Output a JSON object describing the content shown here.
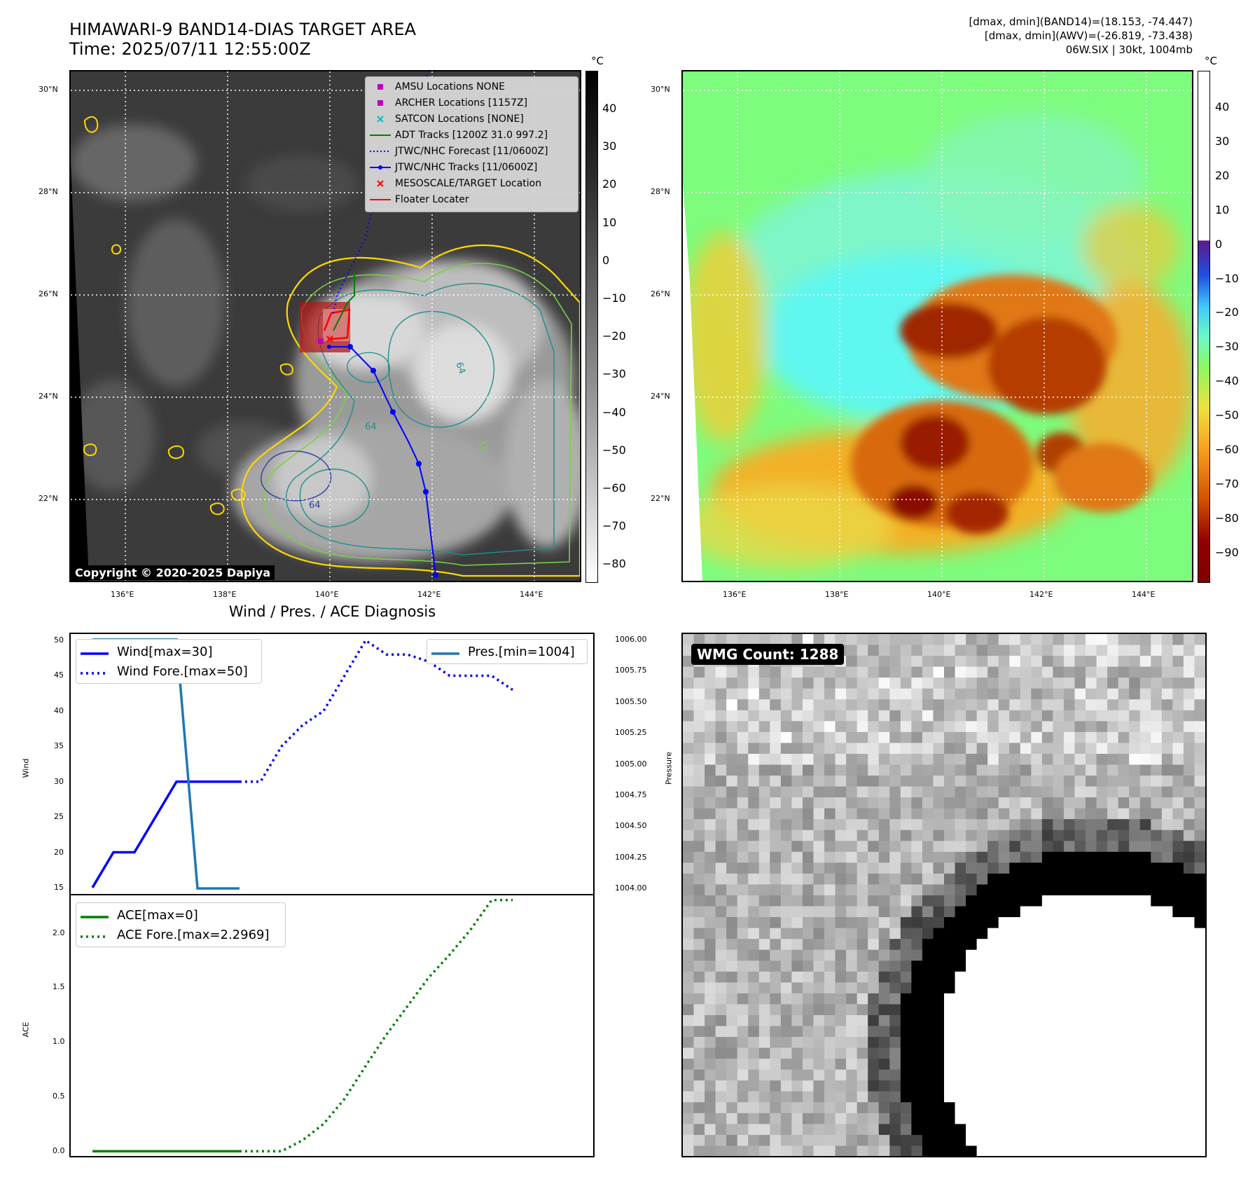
{
  "header": {
    "title_line1": "HIMAWARI-9 BAND14-DIAS TARGET AREA",
    "title_line2": "Time: 2025/07/11 12:55:00Z",
    "info_line1": "[dmax, dmin](BAND14)=(18.153, -74.447)",
    "info_line2": "[dmax, dmin](AWV)=(-26.819, -73.438)",
    "info_line3": "06W.SIX | 30kt, 1004mb"
  },
  "maps": {
    "lat_labels": [
      "30°N",
      "28°N",
      "26°N",
      "24°N",
      "22°N"
    ],
    "lon_labels": [
      "136°E",
      "138°E",
      "140°E",
      "142°E",
      "144°E"
    ],
    "colorbar_unit": "°C",
    "band14_ticks": [
      "40",
      "30",
      "20",
      "10",
      "0",
      "−10",
      "−20",
      "−30",
      "−40",
      "−50",
      "−60",
      "−70",
      "−80"
    ],
    "awv_ticks": [
      "40",
      "30",
      "20",
      "10",
      "0",
      "−10",
      "−20",
      "−30",
      "−40",
      "−50",
      "−60",
      "−70",
      "−80",
      "−90"
    ],
    "copyright": "Copyright © 2020-2025 Dapiya",
    "legend": [
      {
        "label": "AMSU Locations NONE",
        "symbol": "square",
        "color": "#bf00bf"
      },
      {
        "label": "ARCHER Locations [1157Z]",
        "symbol": "square",
        "color": "#bf00bf"
      },
      {
        "label": "SATCON Locations [NONE]",
        "symbol": "x",
        "color": "#00bfbf"
      },
      {
        "label": "ADT Tracks [1200Z 31.0 997.2]",
        "symbol": "line",
        "color": "#008000"
      },
      {
        "label": "JTWC/NHC Forecast [11/0600Z]",
        "symbol": "dotted",
        "color": "#0000ff"
      },
      {
        "label": "JTWC/NHC Tracks [11/0600Z]",
        "symbol": "line-dot",
        "color": "#0000ff"
      },
      {
        "label": "MESOSCALE/TARGET Location",
        "symbol": "x",
        "color": "#ff0000"
      },
      {
        "label": "Floater Locater",
        "symbol": "line",
        "color": "#ff0000"
      }
    ],
    "contour_labels": [
      "64",
      "64",
      "31",
      "64"
    ]
  },
  "diagnosis": {
    "title": "Wind / Pres. / ACE Diagnosis",
    "wind_ylabel": "Wind",
    "pres_ylabel": "Pressure",
    "ace_ylabel": "ACE",
    "wind_ticks": [
      "50",
      "45",
      "40",
      "35",
      "30",
      "25",
      "20",
      "15"
    ],
    "pres_ticks": [
      "1006.00",
      "1005.75",
      "1005.50",
      "1005.25",
      "1005.00",
      "1004.75",
      "1004.50",
      "1004.25",
      "1004.00"
    ],
    "ace_ticks": [
      "2.0",
      "1.5",
      "1.0",
      "0.5",
      "0.0"
    ],
    "legend_wind": "Wind[max=30]",
    "legend_wind_fore": "Wind Fore.[max=50]",
    "legend_pres": "Pres.[min=1004]",
    "legend_ace": "ACE[max=0]",
    "legend_ace_fore": "ACE Fore.[max=2.2969]"
  },
  "wmg": {
    "label": "WMG Count: 1288"
  },
  "chart_data": [
    {
      "type": "line",
      "title": "Wind / Pres. / ACE Diagnosis",
      "ylabel": "Wind",
      "ylim": [
        14,
        51
      ],
      "series": [
        {
          "name": "Wind[max=30]",
          "color": "#0000ff",
          "style": "solid",
          "x": [
            0,
            1,
            2,
            3,
            4,
            5,
            6,
            7
          ],
          "values": [
            15,
            20,
            20,
            25,
            30,
            30,
            30,
            30
          ]
        },
        {
          "name": "Wind Fore.[max=50]",
          "color": "#0000ff",
          "style": "dotted",
          "x": [
            7,
            8,
            9,
            10,
            11,
            12,
            13,
            14,
            15,
            16,
            17,
            18,
            19,
            20
          ],
          "values": [
            30,
            30,
            35,
            38,
            40,
            45,
            50,
            48,
            48,
            47,
            45,
            45,
            45,
            43
          ]
        }
      ]
    },
    {
      "type": "line",
      "ylabel": "Pressure",
      "ylim": [
        1003.95,
        1006.05
      ],
      "series": [
        {
          "name": "Pres.[min=1004]",
          "color": "#1f77b4",
          "style": "solid",
          "x": [
            0,
            4,
            5,
            7
          ],
          "values": [
            1006,
            1006,
            1004,
            1004
          ]
        }
      ]
    },
    {
      "type": "line",
      "ylabel": "ACE",
      "ylim": [
        -0.05,
        2.35
      ],
      "series": [
        {
          "name": "ACE[max=0]",
          "color": "#008000",
          "style": "solid",
          "x": [
            0,
            1,
            2,
            3,
            4,
            5,
            6,
            7
          ],
          "values": [
            0,
            0,
            0,
            0,
            0,
            0,
            0,
            0
          ]
        },
        {
          "name": "ACE Fore.[max=2.2969]",
          "color": "#008000",
          "style": "dotted",
          "x": [
            7,
            8,
            9,
            10,
            11,
            12,
            13,
            14,
            15,
            16,
            17,
            18,
            19,
            20
          ],
          "values": [
            0,
            0,
            0,
            0.1,
            0.25,
            0.48,
            0.78,
            1.07,
            1.33,
            1.59,
            1.8,
            2.03,
            2.3,
            2.3
          ]
        }
      ]
    }
  ]
}
